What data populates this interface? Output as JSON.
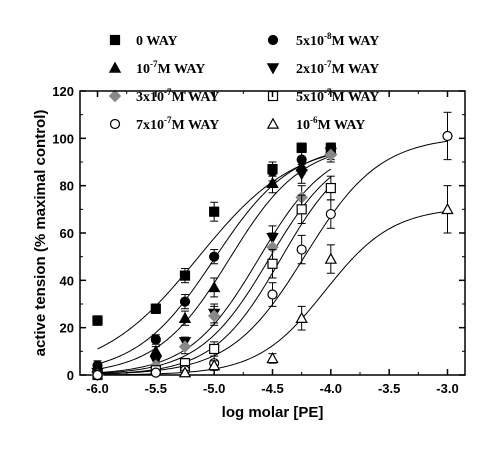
{
  "chart_data": {
    "type": "scatter",
    "xlabel": "log molar [PE]",
    "ylabel": "active tension (% maximal control)",
    "xlim": [
      -6.15,
      -2.85
    ],
    "ylim": [
      0,
      120
    ],
    "xticks": [
      -6.0,
      -5.5,
      -5.0,
      -4.5,
      -4.0,
      -3.5,
      -3.0
    ],
    "xtick_labels": [
      "-6.0",
      "-5.5",
      "-5.0",
      "-4.5",
      "-4.0",
      "-3.5",
      "-3.0"
    ],
    "yticks": [
      0,
      20,
      40,
      60,
      80,
      100,
      120
    ],
    "ytick_labels": [
      "0",
      "20",
      "40",
      "60",
      "80",
      "100",
      "120"
    ],
    "grid": false,
    "legend_position": "top",
    "series": [
      {
        "name": "0 WAY",
        "label": {
          "pre": "0 WAY",
          "sup": "",
          "post": ""
        },
        "marker": "square-filled",
        "color": "#000000",
        "x": [
          -6.0,
          -5.5,
          -5.25,
          -5.0,
          -4.5,
          -4.25,
          -4.0
        ],
        "y": [
          23,
          28,
          42,
          69,
          87,
          96,
          96
        ],
        "err": [
          2,
          2,
          3,
          4,
          3,
          2,
          2
        ],
        "fit": {
          "ec50": -5.14,
          "hill": 1.05,
          "max": 99
        }
      },
      {
        "name": "5x10-8M WAY",
        "label": {
          "pre": "5x10",
          "sup": "-8",
          "post": "M WAY"
        },
        "marker": "circle-filled",
        "color": "#000000",
        "x": [
          -6.0,
          -5.5,
          -5.25,
          -5.0,
          -4.5,
          -4.25,
          -4.0
        ],
        "y": [
          4,
          15,
          31,
          50,
          86,
          91,
          96
        ],
        "err": [
          2,
          2,
          3,
          3,
          4,
          3,
          2
        ],
        "fit": {
          "ec50": -5.0,
          "hill": 1.3,
          "max": 98
        }
      },
      {
        "name": "10-7M WAY",
        "label": {
          "pre": "10",
          "sup": "-7",
          "post": "M WAY"
        },
        "marker": "triangle-up-filled",
        "color": "#000000",
        "x": [
          -6.0,
          -5.5,
          -5.25,
          -5.0,
          -4.5,
          -4.25,
          -4.0
        ],
        "y": [
          3,
          10,
          24,
          37,
          81,
          88,
          95
        ],
        "err": [
          1,
          2,
          3,
          4,
          4,
          3,
          2
        ],
        "fit": {
          "ec50": -4.87,
          "hill": 1.4,
          "max": 98
        }
      },
      {
        "name": "2x10-7M WAY",
        "label": {
          "pre": "2x10",
          "sup": "-7",
          "post": "M WAY"
        },
        "marker": "triangle-down-filled",
        "color": "#000000",
        "x": [
          -6.0,
          -5.5,
          -5.25,
          -5.0,
          -4.5,
          -4.25,
          -4.0
        ],
        "y": [
          1,
          6,
          14,
          26,
          58,
          85,
          94
        ],
        "err": [
          1,
          2,
          2,
          4,
          5,
          4,
          3
        ],
        "fit": {
          "ec50": -4.62,
          "hill": 1.45,
          "max": 98
        }
      },
      {
        "name": "3x10-7M WAY",
        "label": {
          "pre": "3x10",
          "sup": "-7",
          "post": "M WAY"
        },
        "marker": "diamond-filled",
        "color": "#888888",
        "x": [
          -6.0,
          -5.5,
          -5.25,
          -5.0,
          -4.5,
          -4.25,
          -4.0
        ],
        "y": [
          0,
          4,
          12,
          25,
          54,
          75,
          93
        ],
        "err": [
          1,
          2,
          3,
          4,
          6,
          5,
          3
        ],
        "fit": {
          "ec50": -4.53,
          "hill": 1.45,
          "max": 98
        }
      },
      {
        "name": "5x10-7M WAY",
        "label": {
          "pre": "5x10",
          "sup": "-7",
          "post": "M WAY"
        },
        "marker": "square-open",
        "color": "#000000",
        "x": [
          -6.0,
          -5.5,
          -5.25,
          -5.0,
          -4.5,
          -4.25,
          -4.0
        ],
        "y": [
          0,
          2,
          5,
          11,
          47,
          70,
          79
        ],
        "err": [
          1,
          1,
          2,
          3,
          6,
          6,
          5
        ],
        "fit": {
          "ec50": -4.43,
          "hill": 1.5,
          "max": 98
        }
      },
      {
        "name": "7x10-7M WAY",
        "label": {
          "pre": "7x10",
          "sup": "-7",
          "post": "M WAY"
        },
        "marker": "circle-open",
        "color": "#000000",
        "x": [
          -6.0,
          -5.5,
          -5.25,
          -5.0,
          -4.5,
          -4.25,
          -4.0,
          -3.0
        ],
        "y": [
          0,
          1,
          2,
          5,
          34,
          53,
          68,
          101
        ],
        "err": [
          1,
          1,
          2,
          3,
          5,
          6,
          6,
          10
        ],
        "fit": {
          "ec50": -4.22,
          "hill": 1.35,
          "max": 101
        }
      },
      {
        "name": "10-6M WAY",
        "label": {
          "pre": "10",
          "sup": "-6",
          "post": "M WAY"
        },
        "marker": "triangle-up-open",
        "color": "#000000",
        "x": [
          -5.25,
          -5.0,
          -4.5,
          -4.25,
          -4.0,
          -3.0
        ],
        "y": [
          1,
          4,
          7,
          24,
          49,
          70
        ],
        "err": [
          1,
          2,
          2,
          5,
          6,
          10
        ],
        "fit": {
          "ec50": -4.05,
          "hill": 1.5,
          "max": 71
        }
      }
    ]
  }
}
